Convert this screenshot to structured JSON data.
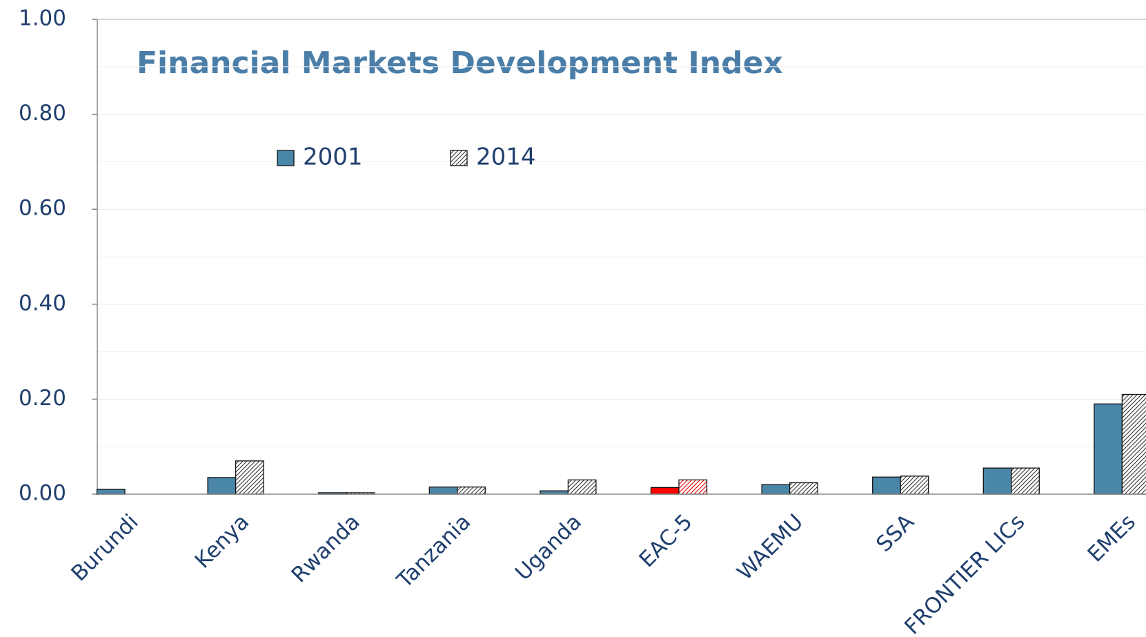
{
  "chart_data": {
    "type": "bar",
    "title": "Financial Markets Development Index",
    "categories": [
      "Burundi",
      "Kenya",
      "Rwanda",
      "Tanzania",
      "Uganda",
      "EAC-5",
      "WAEMU",
      "SSA",
      "FRONTIER LICs",
      "EMEs"
    ],
    "series": [
      {
        "name": "2001",
        "color": "#4a86a8",
        "values": [
          0.01,
          0.035,
          0.003,
          0.015,
          0.007,
          0.014,
          0.02,
          0.036,
          0.055,
          0.19
        ]
      },
      {
        "name": "2014",
        "color": "#ffffff",
        "pattern": "hatch",
        "values": [
          0,
          0.07,
          0.003,
          0.015,
          0.03,
          0.03,
          0.024,
          0.038,
          0.055,
          0.21
        ]
      }
    ],
    "highlight": {
      "category": "EAC-5",
      "color": "#ff0000"
    },
    "ylim": [
      0,
      1
    ],
    "yticks": [
      {
        "value": 0,
        "label": "0.00"
      },
      {
        "value": 0.2,
        "label": "0.20"
      },
      {
        "value": 0.4,
        "label": "0.40"
      },
      {
        "value": 0.6,
        "label": "0.60"
      },
      {
        "value": 0.8,
        "label": "0.80"
      },
      {
        "value": 1,
        "label": "1.00"
      }
    ],
    "minor_yticks": [
      0.1,
      0.3,
      0.5,
      0.7,
      0.9
    ],
    "grid": true,
    "legend": "top"
  }
}
